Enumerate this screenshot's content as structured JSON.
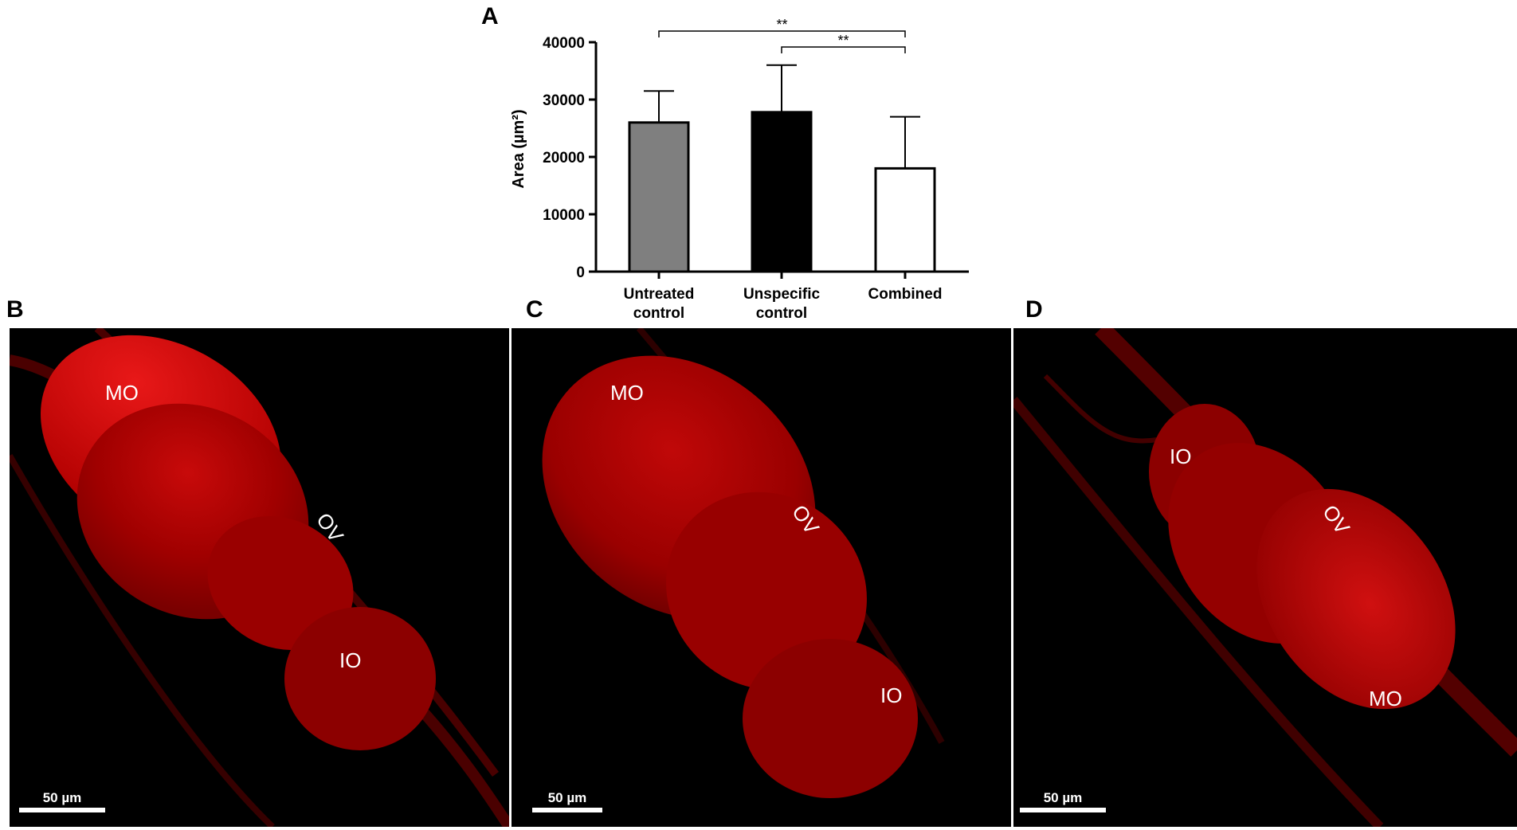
{
  "panels": {
    "A": "A",
    "B": "B",
    "C": "C",
    "D": "D"
  },
  "chart_data": {
    "type": "bar",
    "categories": [
      "Untreated control",
      "Unspecific control",
      "Combined"
    ],
    "category_lines": [
      [
        "Untreated",
        "control"
      ],
      [
        "Unspecific",
        "control"
      ],
      [
        "Combined"
      ]
    ],
    "values": [
      26000,
      27800,
      18000
    ],
    "error_upper": [
      31500,
      36000,
      27000
    ],
    "bar_colors": [
      "#7f7f7f",
      "#000000",
      "#ffffff"
    ],
    "ylabel": "Area (µm²)",
    "ylim": [
      0,
      40000
    ],
    "yticks": [
      0,
      10000,
      20000,
      30000,
      40000
    ],
    "ytick_labels": [
      "0",
      "10000",
      "20000",
      "30000",
      "40000"
    ],
    "significance": [
      {
        "from": 0,
        "to": 2,
        "label": "**"
      },
      {
        "from": 1,
        "to": 2,
        "label": "**"
      }
    ],
    "grid": false
  },
  "micrographs": [
    {
      "id": "B",
      "labels": [
        "MO",
        "OV",
        "IO"
      ],
      "scale_bar": "50 µm"
    },
    {
      "id": "C",
      "labels": [
        "MO",
        "OV",
        "IO"
      ],
      "scale_bar": "50 µm"
    },
    {
      "id": "D",
      "labels": [
        "IO",
        "OV",
        "MO"
      ],
      "scale_bar": "50 µm"
    }
  ],
  "colors": {
    "tissue": "#b00000",
    "tissue_bright": "#e01010",
    "background": "#000000"
  }
}
